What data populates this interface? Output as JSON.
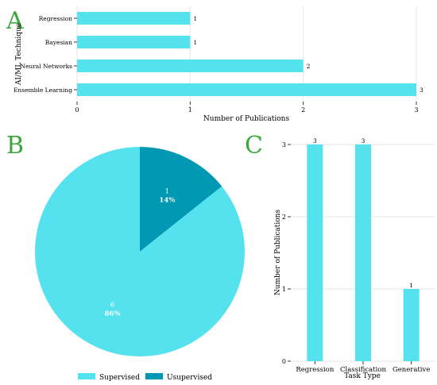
{
  "panels": {
    "a": "A",
    "b": "B",
    "c": "C"
  },
  "colors": {
    "supervised": "#54E3EE",
    "unsupervised": "#0098B3",
    "bar": "#54E3EE",
    "panel_label": "#3DA63D",
    "grid": "#E6E6E6",
    "axis": "#333333"
  },
  "chart_data": [
    {
      "id": "A",
      "type": "bar",
      "orientation": "horizontal",
      "categories": [
        "Regression",
        "Bayesian",
        "Neural Networks",
        "Ensemble Learning"
      ],
      "values": [
        1,
        1,
        2,
        3
      ],
      "data_labels": [
        "1",
        "1",
        "2",
        "3"
      ],
      "xlabel": "Number of Publications",
      "ylabel": "AI/ML Technique",
      "xlim": [
        0,
        3
      ],
      "xticks": [
        "0",
        "1",
        "2",
        "3"
      ],
      "grid": true
    },
    {
      "id": "B",
      "type": "pie",
      "labels": [
        "Supervised",
        "Usupervised"
      ],
      "values": [
        6,
        1
      ],
      "percent_labels": [
        "86%",
        "14%"
      ],
      "count_labels": [
        "6",
        "1"
      ],
      "legend": "bottom"
    },
    {
      "id": "C",
      "type": "bar",
      "orientation": "vertical",
      "categories": [
        "Regression",
        "Classification",
        "Generative"
      ],
      "values": [
        3,
        3,
        1
      ],
      "data_labels": [
        "3",
        "3",
        "1"
      ],
      "xlabel": "Task Type",
      "ylabel": "Number of Publications",
      "ylim": [
        0,
        3
      ],
      "yticks": [
        "0",
        "1",
        "2",
        "3"
      ],
      "grid": true
    }
  ]
}
